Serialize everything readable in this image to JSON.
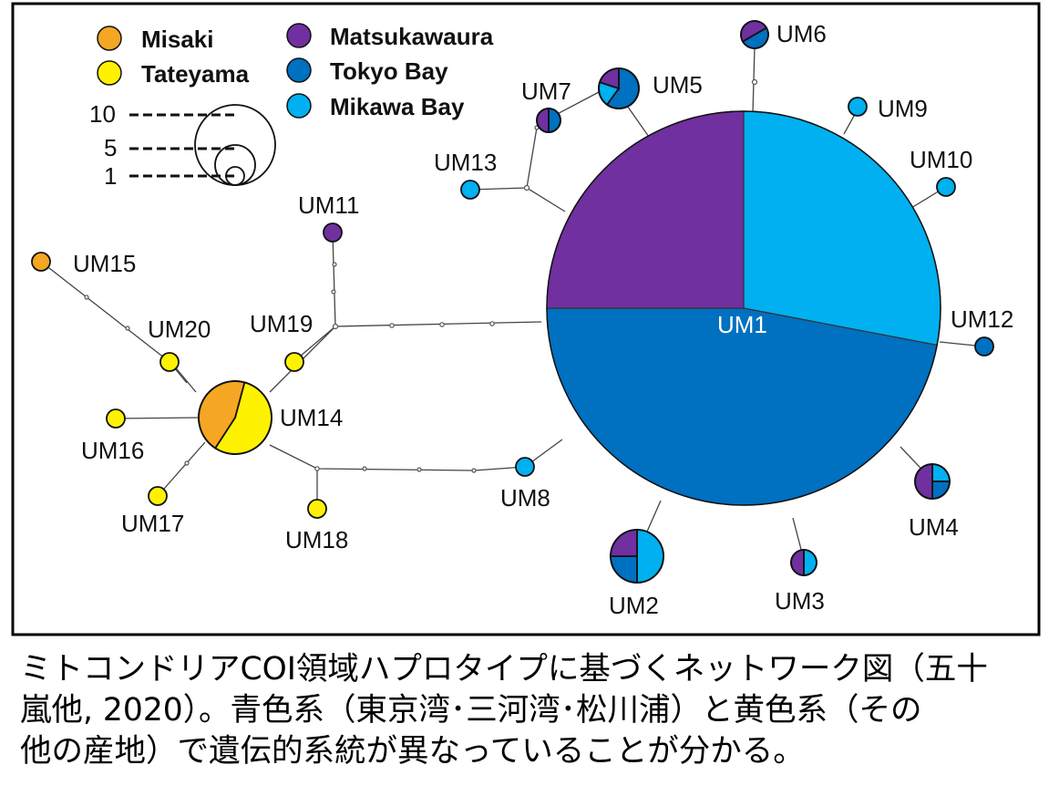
{
  "legend": {
    "populations": [
      {
        "name": "Misaki",
        "color": "#F5A623"
      },
      {
        "name": "Tateyama",
        "color": "#FFF200"
      },
      {
        "name": "Matsukawaura",
        "color": "#7030A0"
      },
      {
        "name": "Tokyo Bay",
        "color": "#0070C0"
      },
      {
        "name": "Mikawa Bay",
        "color": "#00B0F0"
      }
    ],
    "scale_labels": [
      "10",
      "5",
      "1"
    ]
  },
  "nodes": [
    {
      "id": "UM1",
      "label": "UM1",
      "slices": [
        {
          "pop": "Mikawa Bay",
          "frac": 0.28
        },
        {
          "pop": "Tokyo Bay",
          "frac": 0.47
        },
        {
          "pop": "Matsukawaura",
          "frac": 0.25
        }
      ]
    },
    {
      "id": "UM2",
      "label": "UM2",
      "slices": [
        {
          "pop": "Mikawa Bay",
          "frac": 0.5
        },
        {
          "pop": "Tokyo Bay",
          "frac": 0.25
        },
        {
          "pop": "Matsukawaura",
          "frac": 0.25
        }
      ]
    },
    {
      "id": "UM3",
      "label": "UM3",
      "slices": [
        {
          "pop": "Mikawa Bay",
          "frac": 0.5
        },
        {
          "pop": "Matsukawaura",
          "frac": 0.5
        }
      ]
    },
    {
      "id": "UM4",
      "label": "UM4",
      "slices": [
        {
          "pop": "Mikawa Bay",
          "frac": 0.25
        },
        {
          "pop": "Tokyo Bay",
          "frac": 0.25
        },
        {
          "pop": "Matsukawaura",
          "frac": 0.5
        }
      ]
    },
    {
      "id": "UM5",
      "label": "UM5",
      "slices": [
        {
          "pop": "Tokyo Bay",
          "frac": 0.6
        },
        {
          "pop": "Mikawa Bay",
          "frac": 0.2
        },
        {
          "pop": "Matsukawaura",
          "frac": 0.2
        }
      ]
    },
    {
      "id": "UM6",
      "label": "UM6",
      "slices": [
        {
          "pop": "Tokyo Bay",
          "frac": 0.5
        },
        {
          "pop": "Matsukawaura",
          "frac": 0.5
        }
      ]
    },
    {
      "id": "UM7",
      "label": "UM7",
      "slices": [
        {
          "pop": "Tokyo Bay",
          "frac": 0.5
        },
        {
          "pop": "Matsukawaura",
          "frac": 0.5
        }
      ]
    },
    {
      "id": "UM8",
      "label": "UM8",
      "slices": [
        {
          "pop": "Mikawa Bay",
          "frac": 1
        }
      ]
    },
    {
      "id": "UM9",
      "label": "UM9",
      "slices": [
        {
          "pop": "Mikawa Bay",
          "frac": 1
        }
      ]
    },
    {
      "id": "UM10",
      "label": "UM10",
      "slices": [
        {
          "pop": "Mikawa Bay",
          "frac": 1
        }
      ]
    },
    {
      "id": "UM11",
      "label": "UM11",
      "slices": [
        {
          "pop": "Matsukawaura",
          "frac": 1
        }
      ]
    },
    {
      "id": "UM12",
      "label": "UM12",
      "slices": [
        {
          "pop": "Tokyo Bay",
          "frac": 1
        }
      ]
    },
    {
      "id": "UM13",
      "label": "UM13",
      "slices": [
        {
          "pop": "Mikawa Bay",
          "frac": 1
        }
      ]
    },
    {
      "id": "UM14",
      "label": "UM14",
      "slices": [
        {
          "pop": "Tateyama",
          "frac": 0.55
        },
        {
          "pop": "Misaki",
          "frac": 0.45
        }
      ]
    },
    {
      "id": "UM15",
      "label": "UM15",
      "slices": [
        {
          "pop": "Misaki",
          "frac": 1
        }
      ]
    },
    {
      "id": "UM16",
      "label": "UM16",
      "slices": [
        {
          "pop": "Tateyama",
          "frac": 1
        }
      ]
    },
    {
      "id": "UM17",
      "label": "UM17",
      "slices": [
        {
          "pop": "Tateyama",
          "frac": 1
        }
      ]
    },
    {
      "id": "UM18",
      "label": "UM18",
      "slices": [
        {
          "pop": "Tateyama",
          "frac": 1
        }
      ]
    },
    {
      "id": "UM19",
      "label": "UM19",
      "slices": [
        {
          "pop": "Tateyama",
          "frac": 1
        }
      ]
    },
    {
      "id": "UM20",
      "label": "UM20",
      "slices": [
        {
          "pop": "Tateyama",
          "frac": 1
        }
      ]
    }
  ],
  "caption": {
    "lines": [
      "ミトコンドリアCOI領域ハプロタイプに基づくネットワーク図（五十",
      "嵐他, 2020）。青色系（東京湾･三河湾･松川浦）と黄色系（その",
      "他の産地）で遺伝的系統が異なっていることが分かる。"
    ]
  }
}
